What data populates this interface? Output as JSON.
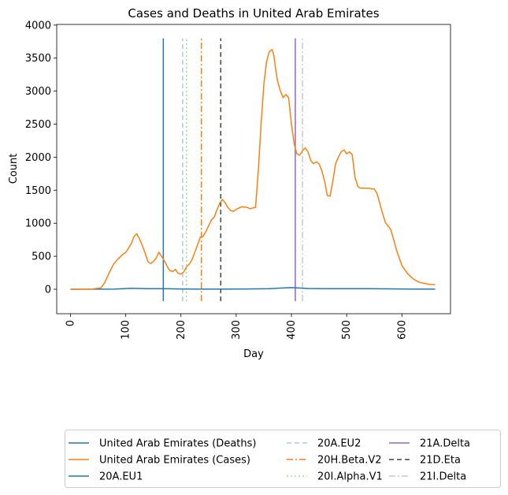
{
  "chart_data": {
    "type": "line",
    "title": "Cases and Deaths in United Arab Emirates",
    "xlabel": "Day",
    "ylabel": "Count",
    "xlim": [
      -25,
      688
    ],
    "ylim": [
      -370,
      4010
    ],
    "xticks": [
      0,
      100,
      200,
      300,
      400,
      500,
      600
    ],
    "yticks": [
      0,
      500,
      1000,
      1500,
      2000,
      2500,
      3000,
      3500,
      4000
    ],
    "series": [
      {
        "name": "United Arab Emirates (Deaths)",
        "color": "#1f77b4",
        "x": [
          0,
          40,
          80,
          110,
          140,
          170,
          200,
          240,
          280,
          320,
          360,
          380,
          400,
          410,
          430,
          460,
          500,
          540,
          580,
          620,
          660
        ],
        "y": [
          0,
          1,
          3,
          15,
          10,
          8,
          5,
          3,
          3,
          5,
          10,
          18,
          25,
          20,
          12,
          8,
          8,
          8,
          6,
          4,
          2
        ]
      },
      {
        "name": "United Arab Emirates (Cases)",
        "color": "#ff7f0e",
        "x": [
          0,
          20,
          40,
          55,
          62,
          70,
          78,
          85,
          95,
          100,
          110,
          115,
          120,
          125,
          130,
          135,
          140,
          145,
          150,
          155,
          160,
          168,
          172,
          176,
          180,
          185,
          190,
          195,
          200,
          205,
          210,
          215,
          220,
          225,
          230,
          235,
          240,
          245,
          250,
          255,
          260,
          265,
          270,
          275,
          280,
          285,
          290,
          295,
          300,
          310,
          320,
          325,
          330,
          335,
          340,
          345,
          350,
          355,
          360,
          365,
          368,
          372,
          375,
          380,
          385,
          390,
          395,
          400,
          405,
          410,
          415,
          420,
          425,
          430,
          435,
          440,
          445,
          450,
          455,
          460,
          465,
          470,
          475,
          480,
          485,
          490,
          495,
          500,
          505,
          510,
          515,
          520,
          525,
          530,
          535,
          540,
          545,
          550,
          555,
          560,
          565,
          570,
          575,
          580,
          590,
          600,
          610,
          620,
          630,
          640,
          650,
          660
        ],
        "y": [
          0,
          2,
          5,
          20,
          100,
          250,
          380,
          450,
          530,
          560,
          690,
          800,
          840,
          760,
          660,
          550,
          420,
          390,
          420,
          470,
          560,
          460,
          400,
          330,
          280,
          270,
          300,
          240,
          230,
          260,
          340,
          380,
          450,
          560,
          670,
          790,
          800,
          870,
          960,
          1050,
          1090,
          1200,
          1300,
          1360,
          1310,
          1240,
          1190,
          1180,
          1210,
          1250,
          1240,
          1220,
          1230,
          1240,
          1800,
          2500,
          3100,
          3450,
          3600,
          3630,
          3550,
          3300,
          3150,
          3000,
          2900,
          2950,
          2900,
          2500,
          2200,
          2050,
          2030,
          2100,
          2140,
          2080,
          1950,
          1900,
          1930,
          1900,
          1800,
          1640,
          1420,
          1410,
          1640,
          1900,
          2000,
          2080,
          2110,
          2050,
          2080,
          2040,
          1700,
          1560,
          1530,
          1530,
          1530,
          1530,
          1520,
          1520,
          1450,
          1300,
          1150,
          1010,
          960,
          900,
          600,
          360,
          240,
          160,
          110,
          90,
          75,
          70
        ]
      }
    ],
    "vlines": [
      {
        "name": "20A.EU1",
        "x": 168,
        "color": "#1f77b4",
        "style": "solid"
      },
      {
        "name": "20A.EU2",
        "x": 203,
        "color": "#aec7e8",
        "style": "dashed"
      },
      {
        "name": "20H.Beta.V2",
        "x": 237,
        "color": "#ff7f0e",
        "style": "dashdot"
      },
      {
        "name": "20I.Alpha.V1",
        "x": 210,
        "color": "#98df8a",
        "style": "dotted"
      },
      {
        "name": "21A.Delta",
        "x": 407,
        "color": "#9467bd",
        "style": "solid"
      },
      {
        "name": "21D.Eta",
        "x": 272,
        "color": "#444444",
        "style": "dashed"
      },
      {
        "name": "21I.Delta",
        "x": 420,
        "color": "#c7c7c7",
        "style": "dashdot"
      }
    ],
    "vline_range": [
      -180,
      3800
    ],
    "legend": {
      "placement": "bottom",
      "columns": [
        [
          "United Arab Emirates (Deaths)",
          "United Arab Emirates (Cases)",
          "20A.EU1"
        ],
        [
          "20A.EU2",
          "20H.Beta.V2",
          "20I.Alpha.V1"
        ],
        [
          "21A.Delta",
          "21D.Eta",
          "21I.Delta"
        ]
      ]
    }
  }
}
